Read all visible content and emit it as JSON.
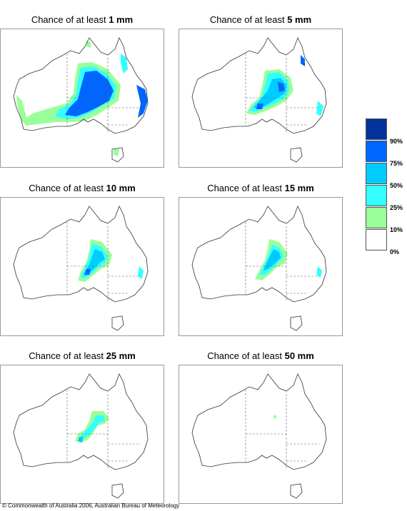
{
  "panels": [
    {
      "title_prefix": "Chance of at least ",
      "threshold": "1 mm"
    },
    {
      "title_prefix": "Chance of at least ",
      "threshold": "5 mm"
    },
    {
      "title_prefix": "Chance of at least ",
      "threshold": "10 mm"
    },
    {
      "title_prefix": "Chance of at least ",
      "threshold": "15 mm"
    },
    {
      "title_prefix": "Chance of at least ",
      "threshold": "25 mm"
    },
    {
      "title_prefix": "Chance of at least ",
      "threshold": "50 mm"
    }
  ],
  "legend": {
    "labels": [
      "90%",
      "75%",
      "50%",
      "25%",
      "10%",
      "0%"
    ],
    "colors": [
      "#00339a",
      "#0066ff",
      "#00ccff",
      "#33ffff",
      "#99ff99",
      "#ffffff"
    ]
  },
  "footer": {
    "copyright": "© Commonwealth of Australia 2006, Australian Bureau of Meteorology"
  }
}
